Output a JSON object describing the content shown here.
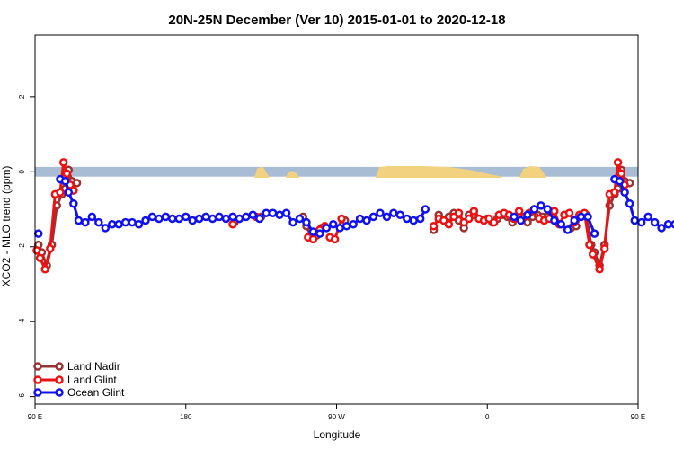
{
  "chart_data": {
    "type": "line",
    "title": "20N-25N December (Ver 10)   2015-01-01 to 2020-12-18",
    "xlabel": "Longitude",
    "ylabel": "XCO2 - MLO trend (ppm)",
    "xlim": [
      90,
      450
    ],
    "ylim": [
      -6.2,
      3.65
    ],
    "x_ticks": [
      {
        "value": 90,
        "label": "90 E"
      },
      {
        "value": 180,
        "label": "180"
      },
      {
        "value": 270,
        "label": "90 W"
      },
      {
        "value": 360,
        "label": "0"
      },
      {
        "value": 450,
        "label": "90 E"
      },
      {
        "value": 540,
        "label": "180"
      }
    ],
    "y_ticks": [
      {
        "value": 2,
        "label": "2"
      },
      {
        "value": 0,
        "label": "0"
      },
      {
        "value": -2,
        "label": "-2"
      },
      {
        "value": -4,
        "label": "-4"
      },
      {
        "value": -6,
        "label": "-6"
      }
    ],
    "legend_position": "bottom-left",
    "land_mask_band": {
      "y_min": -0.13,
      "y_max": 0.13,
      "ocean_color": "#a8bcd4",
      "land_color": "#f2d27e"
    },
    "series": [
      {
        "name": "Land Nadir",
        "color": "#993333",
        "segments": [
          [
            [
              92,
              -1.95
            ],
            [
              94,
              -2.15
            ],
            [
              97,
              -2.5
            ],
            [
              100,
              -1.95
            ],
            [
              103,
              -0.9
            ],
            [
              106,
              -0.6
            ],
            [
              108,
              -0.45
            ],
            [
              110,
              0.05
            ],
            [
              112,
              -0.25
            ],
            [
              115,
              -0.3
            ]
          ],
          [
            [
              209,
              -1.35
            ],
            [
              212,
              -1.25
            ]
          ],
          [
            [
              225,
              -1.2
            ]
          ],
          [
            [
              250,
              -1.2
            ],
            [
              252,
              -1.45
            ],
            [
              255,
              -1.75
            ],
            [
              258,
              -1.7
            ],
            [
              261,
              -1.5
            ]
          ],
          [
            [
              275,
              -1.3
            ]
          ],
          [
            [
              328,
              -1.55
            ],
            [
              331,
              -1.15
            ]
          ],
          [
            [
              337,
              -1.2
            ],
            [
              340,
              -1.1
            ],
            [
              343,
              -1.3
            ],
            [
              346,
              -1.5
            ],
            [
              349,
              -1.15
            ],
            [
              352,
              -1.15
            ]
          ],
          [
            [
              360,
              -1.25
            ],
            [
              363,
              -1.35
            ],
            [
              366,
              -1.25
            ],
            [
              369,
              -1.15
            ],
            [
              372,
              -1.2
            ],
            [
              375,
              -1.35
            ]
          ],
          [
            [
              384,
              -1.35
            ],
            [
              387,
              -1.2
            ],
            [
              390,
              -1.15
            ],
            [
              393,
              -1.2
            ],
            [
              396,
              -1.2
            ]
          ],
          [
            [
              410,
              -1.5
            ],
            [
              413,
              -1.45
            ],
            [
              416,
              -1.15
            ],
            [
              419,
              -1.15
            ],
            [
              422,
              -1.95
            ],
            [
              424,
              -2.15
            ],
            [
              427,
              -2.5
            ],
            [
              430,
              -1.95
            ],
            [
              433,
              -0.9
            ],
            [
              436,
              -0.6
            ],
            [
              438,
              -0.45
            ],
            [
              440,
              0.05
            ],
            [
              442,
              -0.25
            ],
            [
              445,
              -0.3
            ]
          ]
        ]
      },
      {
        "name": "Land Glint",
        "color": "#ee1111",
        "segments": [
          [
            [
              91,
              -2.1
            ],
            [
              93,
              -2.3
            ],
            [
              96,
              -2.6
            ],
            [
              99,
              -2.05
            ],
            [
              102,
              -0.6
            ],
            [
              105,
              -0.55
            ],
            [
              107,
              0.25
            ],
            [
              109,
              -0.05
            ],
            [
              111,
              -0.35
            ],
            [
              113,
              -0.5
            ]
          ],
          [
            [
              208,
              -1.4
            ]
          ],
          [
            [
              222,
              -1.2
            ]
          ],
          [
            [
              253,
              -1.75
            ],
            [
              256,
              -1.8
            ],
            [
              260,
              -1.55
            ],
            [
              263,
              -1.45
            ]
          ],
          [
            [
              266,
              -1.75
            ],
            [
              269,
              -1.8
            ],
            [
              273,
              -1.25
            ]
          ],
          [
            [
              328,
              -1.45
            ],
            [
              331,
              -1.25
            ],
            [
              334,
              -1.3
            ],
            [
              337,
              -1.4
            ],
            [
              340,
              -1.2
            ],
            [
              343,
              -1.1
            ],
            [
              346,
              -1.35
            ],
            [
              349,
              -1.25
            ],
            [
              352,
              -1.05
            ],
            [
              355,
              -1.25
            ],
            [
              358,
              -1.3
            ],
            [
              361,
              -1.25
            ],
            [
              364,
              -1.35
            ],
            [
              367,
              -1.15
            ],
            [
              370,
              -1.1
            ],
            [
              373,
              -1.15
            ],
            [
              376,
              -1.25
            ],
            [
              379,
              -1.05
            ],
            [
              382,
              -1.2
            ],
            [
              385,
              -1.1
            ],
            [
              388,
              -1.0
            ],
            [
              391,
              -1.25
            ],
            [
              394,
              -1.3
            ],
            [
              397,
              -1.25
            ],
            [
              400,
              -1.05
            ],
            [
              403,
              -1.4
            ],
            [
              406,
              -1.15
            ],
            [
              409,
              -1.1
            ],
            [
              412,
              -1.35
            ],
            [
              415,
              -1.15
            ],
            [
              418,
              -1.1
            ],
            [
              421,
              -1.95
            ],
            [
              423,
              -2.2
            ],
            [
              427,
              -2.6
            ],
            [
              430,
              -2.05
            ],
            [
              433,
              -0.6
            ],
            [
              436,
              -0.55
            ],
            [
              438,
              0.25
            ],
            [
              440,
              -0.05
            ],
            [
              442,
              -0.35
            ]
          ]
        ]
      },
      {
        "name": "Ocean Glint",
        "color": "#1111ee",
        "segments": [
          [
            [
              92,
              -1.65
            ]
          ],
          [
            [
              105,
              -0.2
            ],
            [
              108,
              -0.25
            ],
            [
              110,
              -0.55
            ],
            [
              113,
              -0.85
            ],
            [
              116,
              -1.3
            ],
            [
              120,
              -1.35
            ],
            [
              124,
              -1.2
            ],
            [
              128,
              -1.35
            ],
            [
              132,
              -1.5
            ],
            [
              136,
              -1.4
            ],
            [
              140,
              -1.4
            ],
            [
              144,
              -1.35
            ],
            [
              148,
              -1.35
            ],
            [
              152,
              -1.4
            ],
            [
              156,
              -1.3
            ],
            [
              160,
              -1.2
            ],
            [
              164,
              -1.25
            ],
            [
              168,
              -1.2
            ],
            [
              172,
              -1.25
            ],
            [
              176,
              -1.25
            ],
            [
              180,
              -1.2
            ],
            [
              184,
              -1.3
            ],
            [
              188,
              -1.25
            ],
            [
              192,
              -1.2
            ],
            [
              196,
              -1.25
            ],
            [
              200,
              -1.2
            ],
            [
              204,
              -1.25
            ],
            [
              208,
              -1.2
            ],
            [
              212,
              -1.25
            ],
            [
              216,
              -1.2
            ],
            [
              220,
              -1.15
            ],
            [
              224,
              -1.25
            ],
            [
              228,
              -1.1
            ],
            [
              232,
              -1.1
            ],
            [
              236,
              -1.15
            ],
            [
              240,
              -1.1
            ],
            [
              244,
              -1.35
            ],
            [
              248,
              -1.25
            ],
            [
              252,
              -1.35
            ],
            [
              256,
              -1.6
            ],
            [
              260,
              -1.65
            ],
            [
              264,
              -1.5
            ],
            [
              268,
              -1.4
            ],
            [
              272,
              -1.5
            ],
            [
              276,
              -1.45
            ],
            [
              280,
              -1.4
            ],
            [
              284,
              -1.25
            ],
            [
              288,
              -1.3
            ],
            [
              292,
              -1.2
            ],
            [
              296,
              -1.1
            ],
            [
              300,
              -1.2
            ],
            [
              304,
              -1.1
            ],
            [
              308,
              -1.15
            ],
            [
              312,
              -1.25
            ],
            [
              316,
              -1.3
            ],
            [
              320,
              -1.25
            ],
            [
              323,
              -1.0
            ]
          ],
          [
            [
              376,
              -1.2
            ],
            [
              380,
              -1.3
            ],
            [
              384,
              -1.15
            ],
            [
              388,
              -1.0
            ],
            [
              392,
              -0.9
            ],
            [
              396,
              -1.0
            ],
            [
              400,
              -1.3
            ],
            [
              404,
              -1.4
            ],
            [
              408,
              -1.55
            ],
            [
              412,
              -1.3
            ],
            [
              416,
              -1.2
            ],
            [
              420,
              -1.2
            ],
            [
              424,
              -1.65
            ]
          ],
          [
            [
              436,
              -0.2
            ],
            [
              439,
              -0.25
            ],
            [
              442,
              -0.55
            ],
            [
              445,
              -0.85
            ],
            [
              448,
              -1.3
            ],
            [
              452,
              -1.35
            ],
            [
              456,
              -1.2
            ],
            [
              460,
              -1.35
            ],
            [
              464,
              -1.5
            ],
            [
              468,
              -1.4
            ],
            [
              472,
              -1.4
            ],
            [
              476,
              -1.35
            ],
            [
              480,
              -1.35
            ],
            [
              484,
              -1.4
            ],
            [
              488,
              -1.3
            ]
          ]
        ]
      }
    ]
  }
}
